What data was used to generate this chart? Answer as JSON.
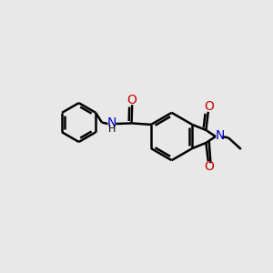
{
  "background_color": "#e8e8e8",
  "bond_color": "#000000",
  "nitrogen_color": "#0000cc",
  "oxygen_color": "#cc0000",
  "line_width": 1.8,
  "figsize": [
    3.0,
    3.0
  ],
  "dpi": 100,
  "xlim": [
    0,
    10
  ],
  "ylim": [
    0,
    10
  ]
}
